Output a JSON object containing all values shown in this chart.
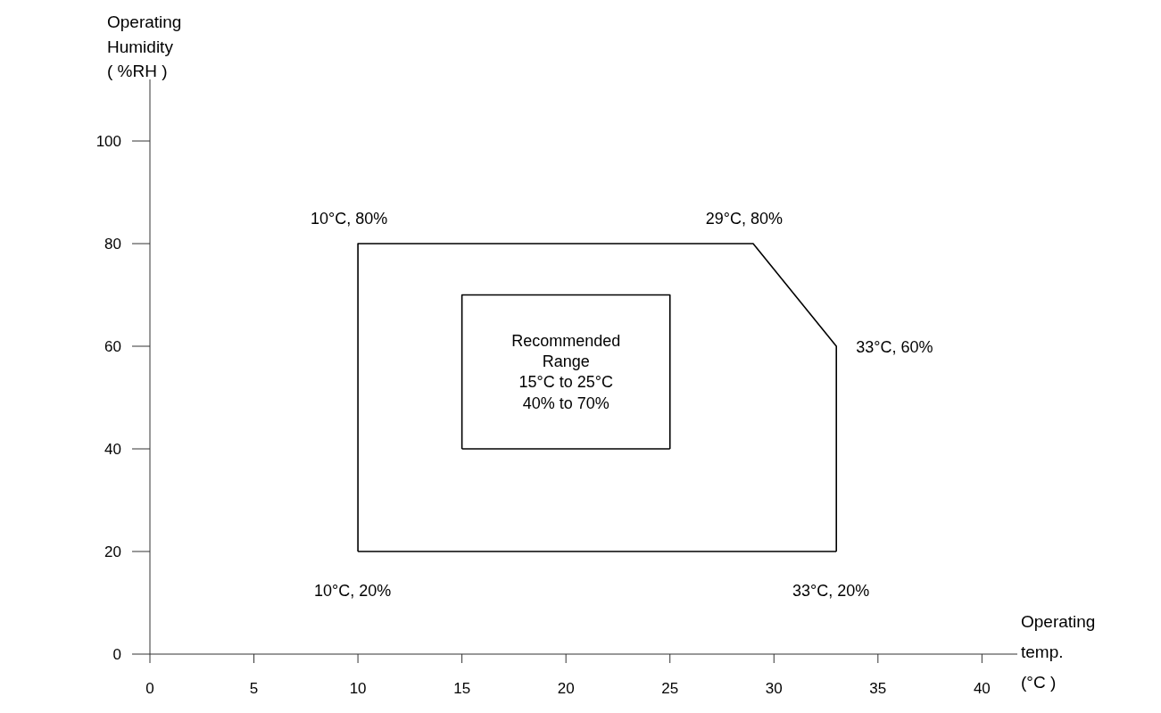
{
  "chart_data": {
    "type": "line",
    "xlabel": "Operating\ntemp.\n(°C  )",
    "ylabel": "Operating\nHumidity\n( %RH )",
    "series": [
      {
        "color": "#000000",
        "x": [
          10,
          10,
          29,
          33,
          33
        ],
        "values": [
          20,
          80,
          80,
          60,
          20
        ]
      },
      {
        "color": "#000000",
        "x": [
          10,
          33
        ],
        "values": [
          20,
          20
        ]
      },
      {
        "color": "#000000",
        "x": [
          15,
          15,
          25,
          25
        ],
        "values": [
          40,
          70,
          70,
          40
        ]
      },
      {
        "color": "#000000",
        "x": [
          15,
          25
        ],
        "values": [
          40,
          40
        ]
      }
    ],
    "xlim": [
      0,
      41.7
    ],
    "xticks": [
      0,
      5,
      10,
      15,
      20,
      25,
      30,
      35,
      40
    ],
    "ylim": [
      0,
      112
    ],
    "yticks": [
      0,
      20,
      40,
      60,
      80,
      100
    ],
    "grid": false,
    "marker": "none",
    "line_style": "solid",
    "annotations": [
      {
        "text": "10°C, 80%",
        "x": 10,
        "y": 80
      },
      {
        "text": "29°C, 80%",
        "x": 29,
        "y": 80
      },
      {
        "text": "33°C, 60%",
        "x": 33,
        "y": 60
      },
      {
        "text": "33°C, 20%",
        "x": 33,
        "y": 20
      },
      {
        "text": "10°C, 20%",
        "x": 10,
        "y": 20
      },
      "Recommended\nRange\n15°C to 25°C\n40% to 70%"
    ]
  }
}
